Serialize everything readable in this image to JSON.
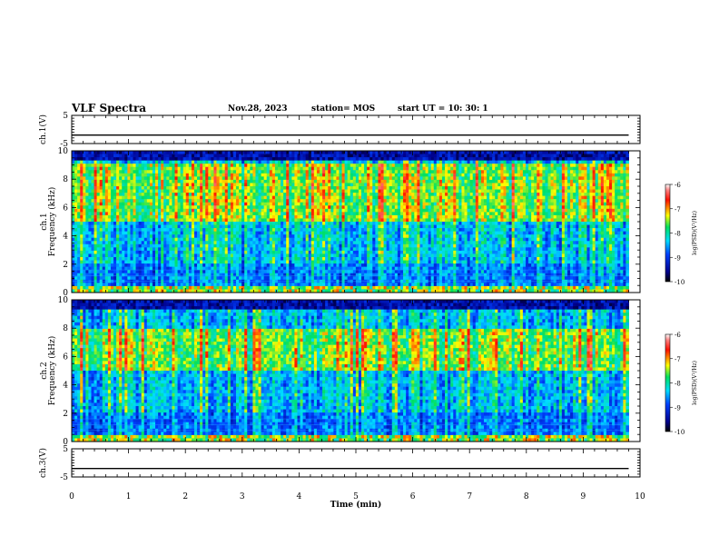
{
  "header": {
    "title": "VLF Spectra",
    "date": "Nov.28, 2023",
    "station": "station= MOS",
    "start_ut": "start  UT =   10: 30: 1"
  },
  "colorbar_label": "log(PSD)(V²/Hz)",
  "chart_data": [
    {
      "type": "line",
      "panel": "channel-1-voltage",
      "ylabel": "ch.1(V)",
      "ylim": [
        -5,
        5
      ],
      "yticks": [
        "5",
        "-5"
      ],
      "xlim": [
        0,
        10
      ],
      "series": [
        {
          "values_note": "",
          "x": [
            0,
            9.8
          ],
          "y": [
            -2,
            -2
          ]
        }
      ]
    },
    {
      "type": "heatmap",
      "panel": "channel-1-spectrogram",
      "ylabel": "ch.1 Frequency (kHz)",
      "ylim": [
        0,
        10
      ],
      "yticks": [
        "0",
        "2",
        "4",
        "6",
        "8",
        "10"
      ],
      "xlim": [
        0,
        10
      ],
      "data_extent_min": 9.8,
      "zlim": [
        -10,
        -6
      ],
      "ztick_labels": [
        "-6",
        "-7",
        "-8",
        "-9",
        "-10"
      ],
      "dominant_band_khz": [
        5,
        9
      ]
    },
    {
      "type": "heatmap",
      "panel": "channel-2-spectrogram",
      "ylabel": "ch.2 Frequency (kHz)",
      "ylim": [
        0,
        10
      ],
      "yticks": [
        "0",
        "2",
        "4",
        "6",
        "8",
        "10"
      ],
      "xlim": [
        0,
        10
      ],
      "data_extent_min": 9.8,
      "zlim": [
        -10,
        -6
      ],
      "ztick_labels": [
        "-6",
        "-7",
        "-8",
        "-9",
        "-10"
      ],
      "dominant_band_khz": [
        5,
        8
      ]
    },
    {
      "type": "line",
      "panel": "channel-3-voltage",
      "ylabel": "ch.3(V)",
      "ylim": [
        -5,
        5
      ],
      "yticks": [
        "5",
        "-5"
      ],
      "xlim": [
        0,
        10
      ],
      "xlabel": "Time (min)",
      "xticks": [
        "0",
        "1",
        "2",
        "3",
        "4",
        "5",
        "6",
        "7",
        "8",
        "9",
        "10"
      ],
      "series": [
        {
          "x": [
            0,
            9.8
          ],
          "y": [
            -2,
            -2
          ]
        }
      ]
    }
  ]
}
